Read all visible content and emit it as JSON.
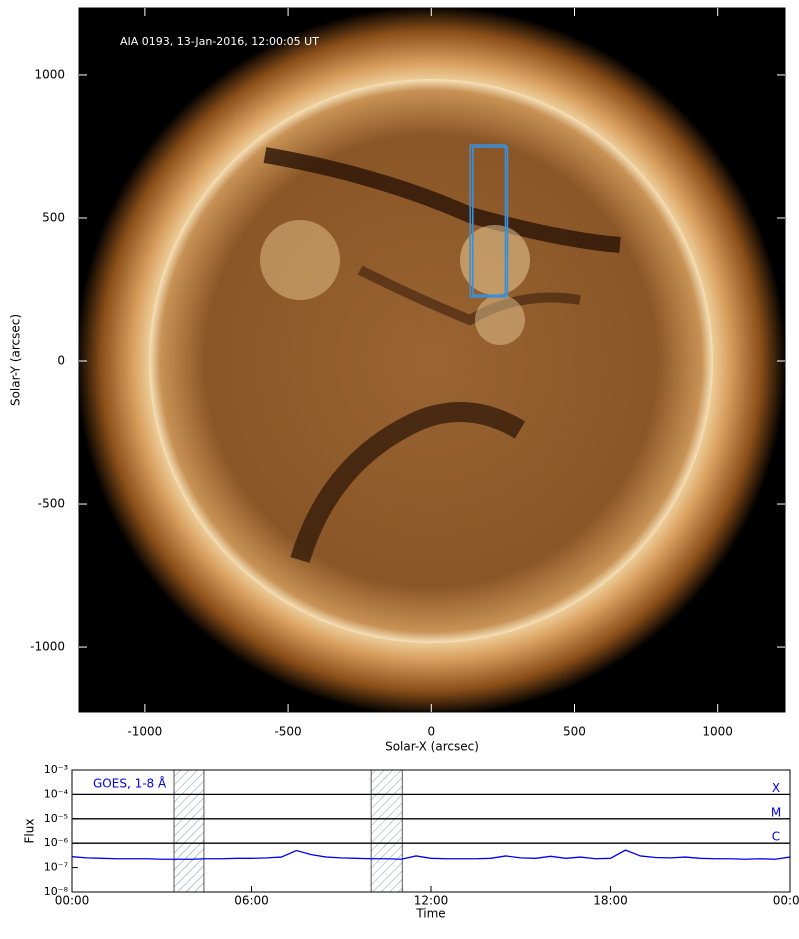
{
  "chart_data": [
    {
      "type": "image",
      "title": "AIA 0193, 13-Jan-2016, 12:00:05 UT",
      "xlabel": "Solar-X (arcsec)",
      "ylabel": "Solar-Y (arcsec)",
      "xlim": [
        -1230,
        1235
      ],
      "ylim": [
        -1227,
        1234
      ],
      "xticks": [
        -1000,
        -500,
        0,
        500,
        1000
      ],
      "yticks": [
        -1000,
        -500,
        0,
        500,
        1000
      ],
      "regions": [
        {
          "x": [
            136,
            259
          ],
          "y": [
            224,
            755
          ]
        },
        {
          "x": [
            145,
            266
          ],
          "y": [
            230,
            748
          ]
        }
      ],
      "region_color": "#3a8fd8"
    },
    {
      "type": "line",
      "xlabel": "Time",
      "ylabel": "Flux",
      "log_y": true,
      "xlim": [
        0,
        24
      ],
      "ylim": [
        1e-08,
        0.001
      ],
      "xticks": [
        {
          "value": 0,
          "label": "00:00"
        },
        {
          "value": 6,
          "label": "06:00"
        },
        {
          "value": 12,
          "label": "12:00"
        },
        {
          "value": 18,
          "label": "18:00"
        },
        {
          "value": 24,
          "label": "00:00"
        }
      ],
      "yticks": [
        {
          "value": 1e-08,
          "label": "10⁻⁸"
        },
        {
          "value": 1e-07,
          "label": "10⁻⁷"
        },
        {
          "value": 1e-06,
          "label": "10⁻⁶"
        },
        {
          "value": 1e-05,
          "label": "10⁻⁵"
        },
        {
          "value": 0.0001,
          "label": "10⁻⁴"
        },
        {
          "value": 0.001,
          "label": "10⁻³"
        }
      ],
      "flare_levels": [
        {
          "value": 0.0001,
          "label": "X"
        },
        {
          "value": 1e-05,
          "label": "M"
        },
        {
          "value": 1e-06,
          "label": "C"
        }
      ],
      "shaded_ranges": [
        [
          3.41,
          4.41
        ],
        [
          10.0,
          11.04
        ]
      ],
      "x": [
        0,
        0.5,
        1,
        1.5,
        2,
        2.5,
        3,
        3.5,
        4,
        4.5,
        5,
        5.5,
        6,
        6.5,
        7,
        7.5,
        8,
        8.5,
        9,
        9.5,
        10,
        10.5,
        11,
        11.5,
        12,
        12.5,
        13,
        13.5,
        14,
        14.5,
        15,
        15.5,
        16,
        16.5,
        17,
        17.5,
        18,
        18.5,
        19,
        19.5,
        20,
        20.5,
        21,
        21.5,
        22,
        22.5,
        23,
        23.5,
        24
      ],
      "series": [
        {
          "name": "GOES, 1-8 Å",
          "color": "#0000ee",
          "values": [
            2.8e-07,
            2.5e-07,
            2.4e-07,
            2.3e-07,
            2.3e-07,
            2.3e-07,
            2.2e-07,
            2.2e-07,
            2.2e-07,
            2.3e-07,
            2.3e-07,
            2.4e-07,
            2.4e-07,
            2.5e-07,
            2.7e-07,
            5e-07,
            3.4e-07,
            2.7e-07,
            2.5e-07,
            2.4e-07,
            2.3e-07,
            2.3e-07,
            2.2e-07,
            3e-07,
            2.4e-07,
            2.3e-07,
            2.3e-07,
            2.3e-07,
            2.4e-07,
            3e-07,
            2.5e-07,
            2.4e-07,
            2.9e-07,
            2.4e-07,
            2.7e-07,
            2.3e-07,
            2.4e-07,
            5.2e-07,
            3e-07,
            2.6e-07,
            2.5e-07,
            2.7e-07,
            2.4e-07,
            2.3e-07,
            2.3e-07,
            2.2e-07,
            2.3e-07,
            2.2e-07,
            2.7e-07
          ]
        }
      ]
    }
  ]
}
